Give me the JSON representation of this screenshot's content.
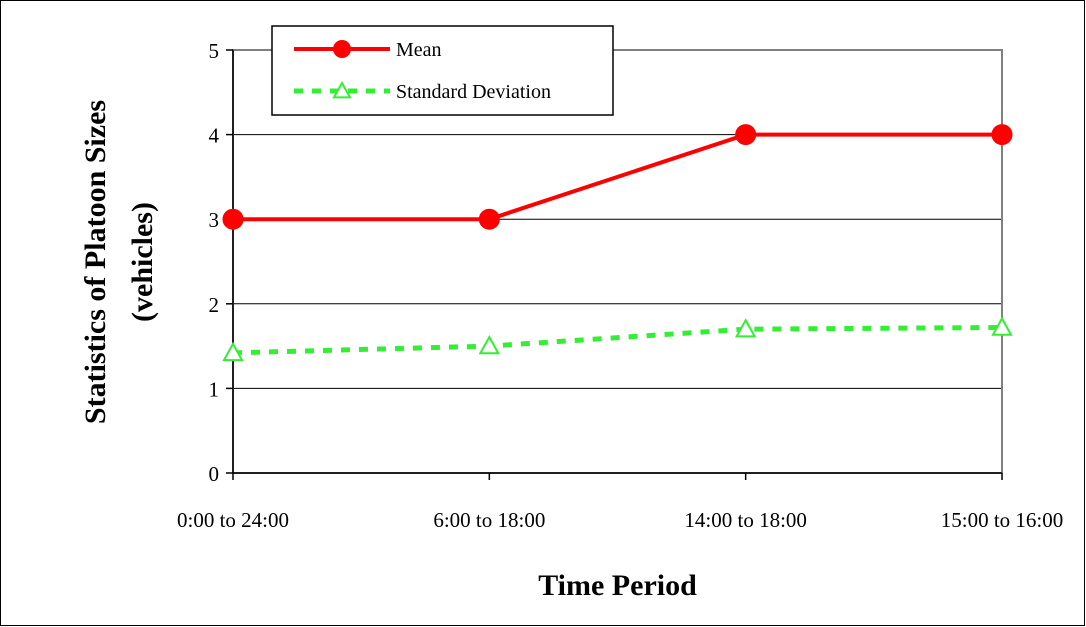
{
  "chart_data": {
    "type": "line",
    "categories": [
      "0:00 to 24:00",
      "6:00 to 18:00",
      "14:00 to 18:00",
      "15:00 to 16:00"
    ],
    "series": [
      {
        "name": "Mean",
        "values": [
          3,
          3,
          4,
          4
        ],
        "color": "#ff0000",
        "marker": "circle",
        "line_style": "solid"
      },
      {
        "name": "Standard Deviation",
        "values": [
          1.42,
          1.5,
          1.7,
          1.72
        ],
        "color": "#33ee33",
        "marker": "triangle-open",
        "line_style": "dashed"
      }
    ],
    "title": "",
    "xlabel": "Time Period",
    "ylabel_lines": [
      "Statistics of Platoon Sizes",
      "(vehicles)"
    ],
    "ylim": [
      0,
      5
    ],
    "yticks": [
      0,
      1,
      2,
      3,
      4,
      5
    ],
    "grid": "horizontal",
    "legend_position": "top-left"
  }
}
